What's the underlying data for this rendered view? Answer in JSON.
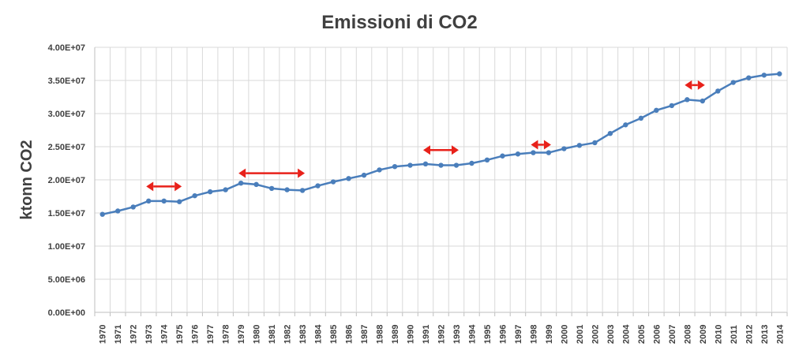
{
  "chart_data": {
    "type": "line",
    "title": "Emissioni di CO2",
    "xlabel": "",
    "ylabel": "ktonn CO2",
    "ylim": [
      0,
      40000000
    ],
    "yticks": [
      "0.00E+00",
      "5.00E+06",
      "1.00E+07",
      "1.50E+07",
      "2.00E+07",
      "2.50E+07",
      "3.00E+07",
      "3.50E+07",
      "4.00E+07"
    ],
    "grid": true,
    "legend": "none",
    "x": [
      "1970",
      "1971",
      "1972",
      "1973",
      "1974",
      "1975",
      "1976",
      "1977",
      "1978",
      "1979",
      "1980",
      "1981",
      "1982",
      "1983",
      "1984",
      "1985",
      "1986",
      "1987",
      "1988",
      "1989",
      "1990",
      "1991",
      "1992",
      "1993",
      "1994",
      "1995",
      "1996",
      "1997",
      "1998",
      "1999",
      "2000",
      "2001",
      "2002",
      "2003",
      "2004",
      "2005",
      "2006",
      "2007",
      "2008",
      "2009",
      "2010",
      "2011",
      "2012",
      "2013",
      "2014"
    ],
    "series": [
      {
        "color": "#4a7ebb",
        "values": [
          14800000,
          15300000,
          15900000,
          16800000,
          16800000,
          16700000,
          17600000,
          18200000,
          18500000,
          19500000,
          19300000,
          18700000,
          18500000,
          18400000,
          19100000,
          19700000,
          20200000,
          20700000,
          21500000,
          22000000,
          22200000,
          22400000,
          22200000,
          22200000,
          22500000,
          23000000,
          23600000,
          23900000,
          24100000,
          24100000,
          24700000,
          25200000,
          25600000,
          27000000,
          28300000,
          29300000,
          30500000,
          31200000,
          32100000,
          31900000,
          33400000,
          34700000,
          35400000,
          35800000,
          36000000
        ]
      }
    ],
    "annotations": [
      {
        "type": "double-arrow",
        "color": "#e8211a",
        "x_from": "1973",
        "x_to": "1975",
        "y": 19000000
      },
      {
        "type": "double-arrow",
        "color": "#e8211a",
        "x_from": "1979",
        "x_to": "1983",
        "y": 21000000
      },
      {
        "type": "double-arrow",
        "color": "#e8211a",
        "x_from": "1991",
        "x_to": "1993",
        "y": 24500000
      },
      {
        "type": "double-arrow",
        "color": "#e8211a",
        "x_from": "1998",
        "x_to": "1999",
        "y": 25300000
      },
      {
        "type": "double-arrow",
        "color": "#e8211a",
        "x_from": "2008",
        "x_to": "2009",
        "y": 34300000
      }
    ]
  }
}
